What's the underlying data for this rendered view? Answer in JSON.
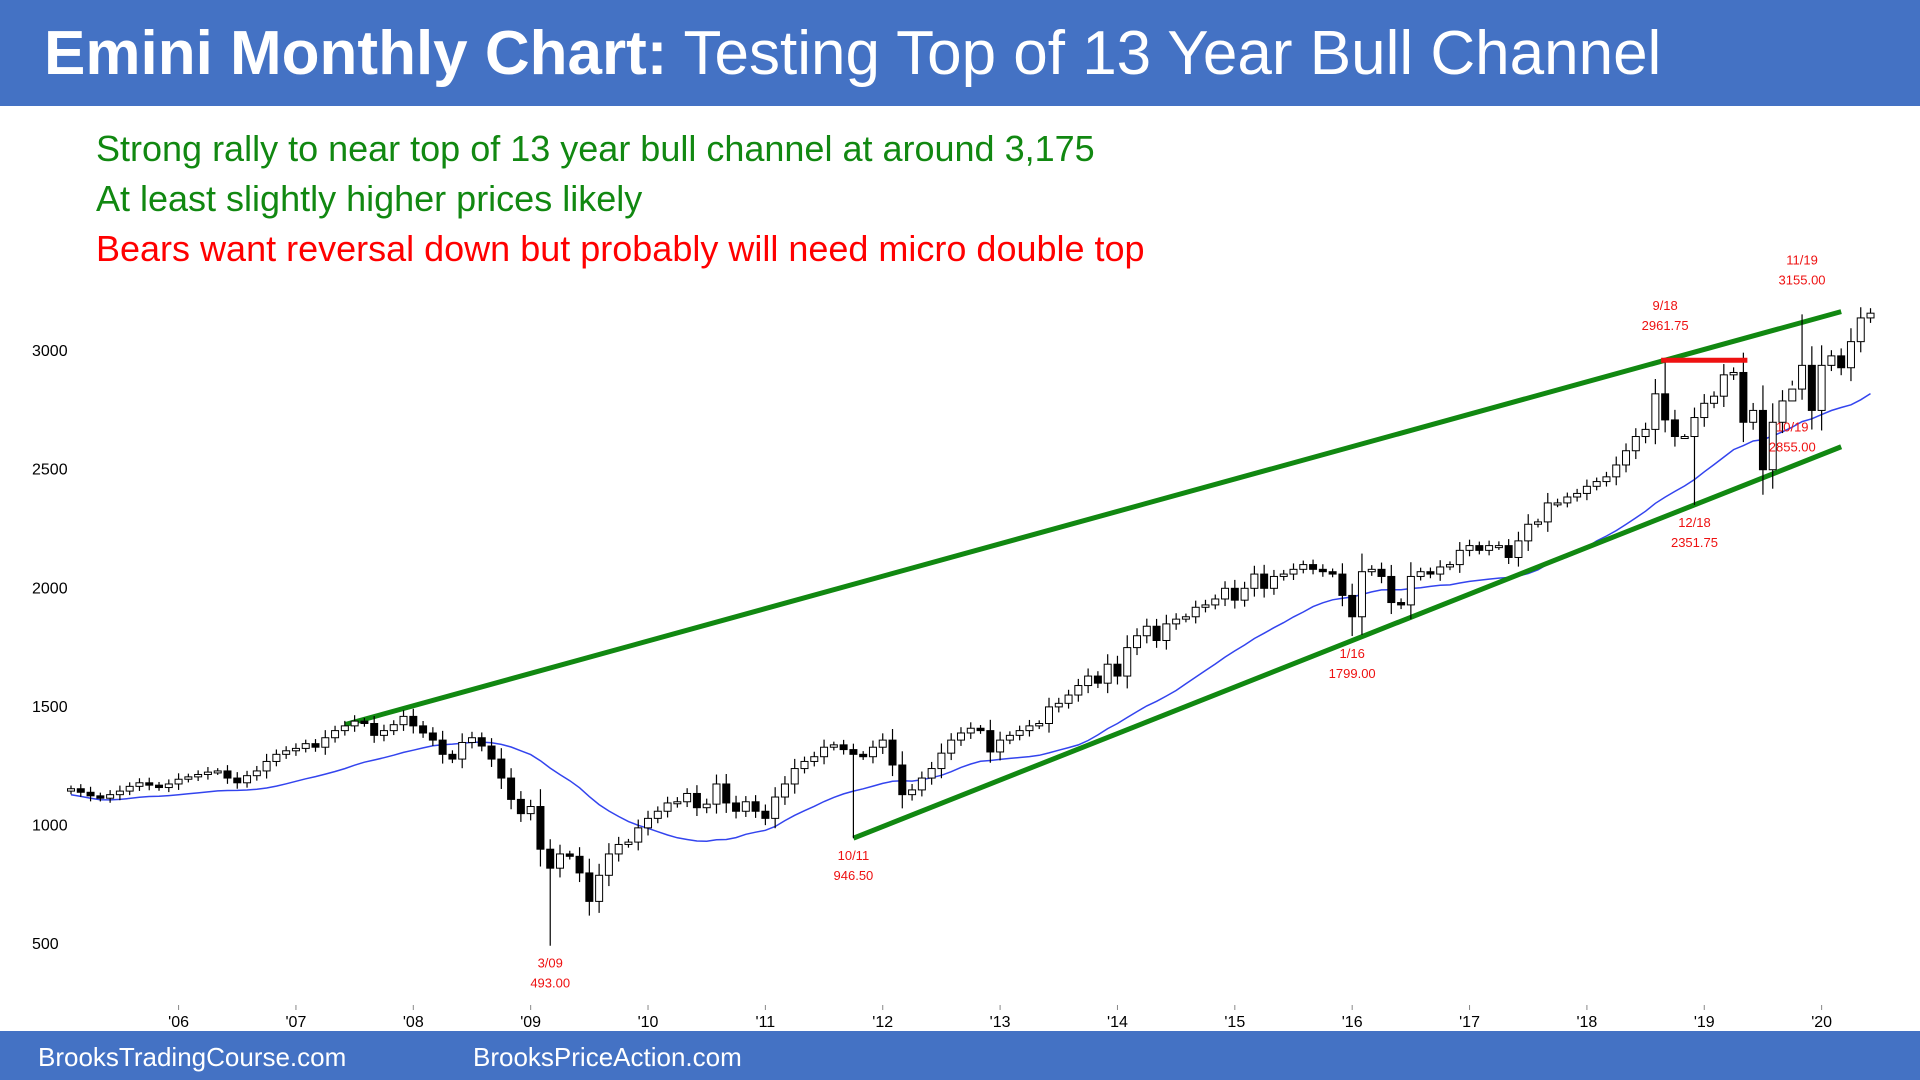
{
  "header": {
    "title_bold": "Emini Monthly Chart:",
    "title_rest": "Testing Top of 13 Year Bull Channel"
  },
  "notes": [
    {
      "text": "Strong rally to near top of 13 year bull channel at around 3,175",
      "color": "#118811"
    },
    {
      "text": "At least slightly higher prices likely",
      "color": "#118811"
    },
    {
      "text": "Bears want reversal down but probably will need micro double top",
      "color": "#ff0000"
    }
  ],
  "footer": {
    "left": "BrooksTradingCourse.com",
    "right": "BrooksPriceAction.com"
  },
  "colors": {
    "banner": "#4472c4",
    "channel": "#118811",
    "moving_average": "#3344ee",
    "annotation": "#ee1111",
    "bull_candle": "#ffffff",
    "bear_candle": "#000000"
  },
  "chart_data": {
    "type": "candlestick",
    "title": "Emini Monthly Chart: Testing Top of 13 Year Bull Channel",
    "start": "2005-02",
    "ylim": [
      260,
      3380
    ],
    "y_ticks": [
      {
        "value": 500,
        "label": "500"
      },
      {
        "value": 1000,
        "label": "1000"
      },
      {
        "value": 1500,
        "label": "1500"
      },
      {
        "value": 2000,
        "label": "2000"
      },
      {
        "value": 2500,
        "label": "2500"
      },
      {
        "value": 3000,
        "label": "3000"
      }
    ],
    "x_ticks": [
      {
        "date": "2006-01",
        "label": "'06"
      },
      {
        "date": "2007-01",
        "label": "'07"
      },
      {
        "date": "2008-01",
        "label": "'08"
      },
      {
        "date": "2009-01",
        "label": "'09"
      },
      {
        "date": "2010-01",
        "label": "'10"
      },
      {
        "date": "2011-01",
        "label": "'11"
      },
      {
        "date": "2012-01",
        "label": "'12"
      },
      {
        "date": "2013-01",
        "label": "'13"
      },
      {
        "date": "2014-01",
        "label": "'14"
      },
      {
        "date": "2015-01",
        "label": "'15"
      },
      {
        "date": "2016-01",
        "label": "'16"
      },
      {
        "date": "2017-01",
        "label": "'17"
      },
      {
        "date": "2018-01",
        "label": "'18"
      },
      {
        "date": "2019-01",
        "label": "'19"
      },
      {
        "date": "2020-01",
        "label": "'20"
      }
    ],
    "closes": [
      1155,
      1140,
      1125,
      1115,
      1130,
      1145,
      1165,
      1180,
      1170,
      1160,
      1175,
      1195,
      1205,
      1215,
      1225,
      1230,
      1200,
      1180,
      1210,
      1230,
      1270,
      1300,
      1315,
      1325,
      1345,
      1330,
      1370,
      1400,
      1420,
      1440,
      1430,
      1380,
      1400,
      1425,
      1460,
      1420,
      1390,
      1360,
      1300,
      1280,
      1350,
      1370,
      1335,
      1280,
      1200,
      1110,
      1050,
      1080,
      900,
      820,
      880,
      870,
      800,
      680,
      790,
      880,
      920,
      930,
      990,
      1030,
      1060,
      1095,
      1100,
      1135,
      1075,
      1090,
      1175,
      1095,
      1060,
      1100,
      1060,
      1030,
      1120,
      1175,
      1240,
      1270,
      1290,
      1330,
      1340,
      1320,
      1300,
      1290,
      1330,
      1360,
      1255,
      1130,
      1150,
      1200,
      1240,
      1305,
      1360,
      1390,
      1410,
      1400,
      1310,
      1360,
      1380,
      1400,
      1420,
      1430,
      1500,
      1515,
      1550,
      1590,
      1630,
      1600,
      1680,
      1630,
      1750,
      1800,
      1840,
      1780,
      1850,
      1870,
      1880,
      1920,
      1930,
      1955,
      2000,
      1950,
      2000,
      2060,
      2000,
      2050,
      2060,
      2080,
      2100,
      2080,
      2070,
      2060,
      1970,
      1880,
      2070,
      2080,
      2050,
      1940,
      1930,
      2050,
      2070,
      2060,
      2090,
      2100,
      2160,
      2180,
      2160,
      2180,
      2180,
      2130,
      2200,
      2270,
      2280,
      2360,
      2360,
      2385,
      2400,
      2430,
      2450,
      2470,
      2520,
      2580,
      2640,
      2670,
      2820,
      2710,
      2640,
      2640,
      2720,
      2780,
      2810,
      2900,
      2910,
      2700,
      2750,
      2500,
      2700,
      2790,
      2840,
      2940,
      2750,
      2940,
      2980,
      2930,
      3040,
      3140,
      3160
    ]
  },
  "markers": [
    {
      "date": "2009-03",
      "label": "3/09",
      "value": "493.00"
    },
    {
      "date": "2011-10",
      "label": "10/11",
      "value": "946.50"
    },
    {
      "date": "2016-01",
      "label": "1/16",
      "value": "1799.00"
    },
    {
      "date": "2018-09",
      "label": "9/18",
      "value": "2961.75"
    },
    {
      "date": "2018-12",
      "label": "12/18",
      "value": "2351.75"
    },
    {
      "date": "2019-10",
      "label": "10/19",
      "value": "2855.00"
    },
    {
      "date": "2019-11",
      "label": "11/19",
      "value": "3155.00"
    }
  ]
}
